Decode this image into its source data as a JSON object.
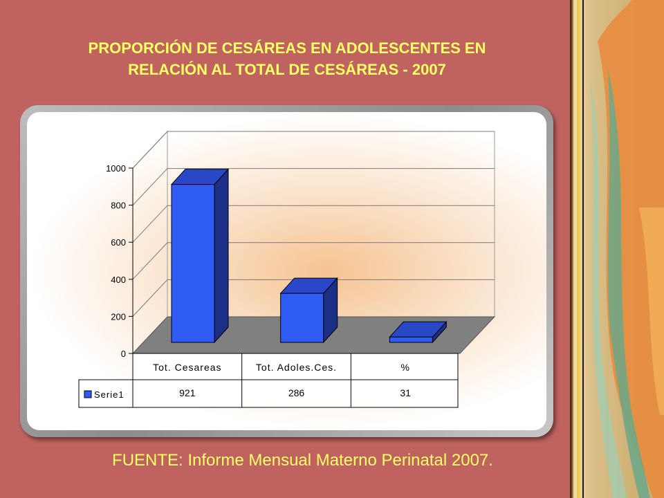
{
  "title_line1": "PROPORCIÓN DE CESÁREAS EN ADOLESCENTES EN",
  "title_line2": "RELACIÓN AL TOTAL DE CESÁREAS - 2007",
  "source": "FUENTE: Informe Mensual Materno Perinatal 2007.",
  "colors": {
    "background": "#c0625f",
    "title": "#ffff66",
    "bar_front": "#2f5cf5",
    "bar_side": "#1c2f86",
    "bar_top": "#2a47c8",
    "floor": "#808080"
  },
  "chart_data": {
    "type": "bar",
    "style": "3d",
    "categories": [
      "Tot. Cesareas",
      "Tot. Adoles.Ces.",
      "%"
    ],
    "series": [
      {
        "name": "Serie1",
        "values": [
          921,
          286,
          31
        ]
      }
    ],
    "yticks": [
      "0",
      "200",
      "400",
      "600",
      "800",
      "1000"
    ],
    "ylim": [
      0,
      1000
    ],
    "grid": true,
    "data_table": true,
    "table_values": [
      "921",
      "286",
      "31"
    ]
  }
}
